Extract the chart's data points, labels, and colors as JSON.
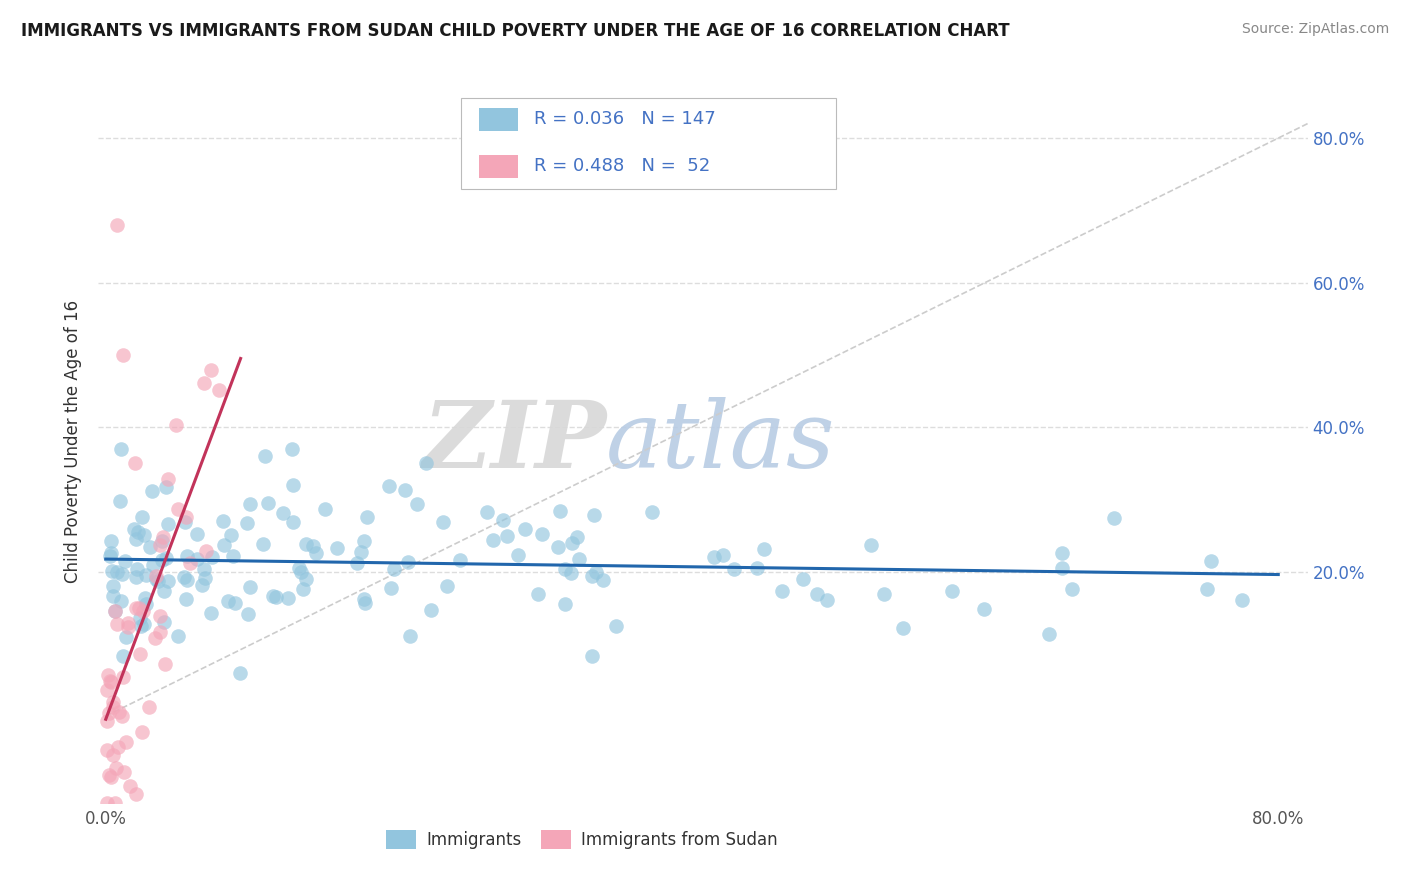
{
  "title": "IMMIGRANTS VS IMMIGRANTS FROM SUDAN CHILD POVERTY UNDER THE AGE OF 16 CORRELATION CHART",
  "source": "Source: ZipAtlas.com",
  "ylabel": "Child Poverty Under the Age of 16",
  "blue_color": "#92c5de",
  "pink_color": "#f4a6b8",
  "blue_line_color": "#2166ac",
  "pink_line_color": "#c2335a",
  "gray_line_color": "#cccccc",
  "R_blue": 0.036,
  "N_blue": 147,
  "R_pink": 0.488,
  "N_pink": 52,
  "legend_label_blue": "Immigrants",
  "legend_label_pink": "Immigrants from Sudan",
  "watermark_zip": "ZIP",
  "watermark_atlas": "atlas",
  "background_color": "#ffffff",
  "grid_color": "#dddddd",
  "xlim": [
    -0.005,
    0.82
  ],
  "ylim": [
    -0.12,
    0.88
  ],
  "xtick_vals": [
    0.0,
    0.8
  ],
  "xtick_labels": [
    "0.0%",
    "80.0%"
  ],
  "ytick_vals": [
    0.0,
    0.2,
    0.4,
    0.6,
    0.8
  ],
  "ytick_labels": [
    "",
    "20.0%",
    "40.0%",
    "60.0%",
    "80.0%"
  ]
}
